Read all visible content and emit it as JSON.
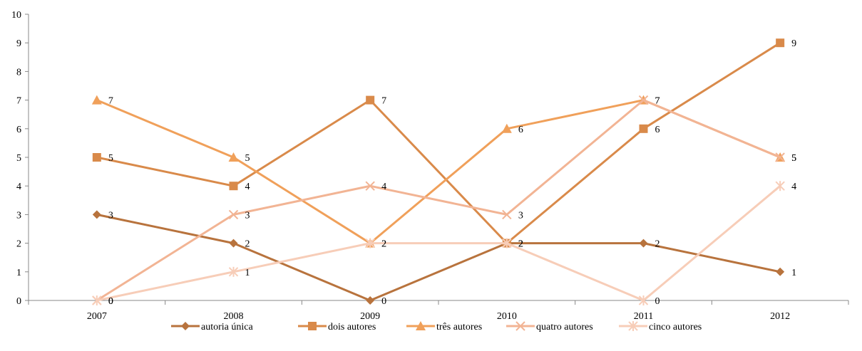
{
  "chart_data": {
    "type": "line",
    "categories": [
      "2007",
      "2008",
      "2009",
      "2010",
      "2011",
      "2012"
    ],
    "ylim": [
      0,
      10
    ],
    "yticks": [
      0,
      1,
      2,
      3,
      4,
      5,
      6,
      7,
      8,
      9,
      10
    ],
    "grid": false,
    "legend_position": "bottom",
    "series": [
      {
        "name": "autoria única",
        "values": [
          3,
          2,
          0,
          2,
          2,
          1
        ],
        "color": "#b8733d",
        "marker": "diamond"
      },
      {
        "name": "dois autores",
        "values": [
          5,
          4,
          7,
          2,
          6,
          9
        ],
        "color": "#d98a4a",
        "marker": "square"
      },
      {
        "name": "três autores",
        "values": [
          7,
          5,
          2,
          6,
          7,
          5
        ],
        "color": "#f0a05a",
        "marker": "triangle"
      },
      {
        "name": "quatro autores",
        "values": [
          0,
          3,
          4,
          3,
          7,
          5
        ],
        "color": "#f2b494",
        "marker": "x"
      },
      {
        "name": "cinco autores",
        "values": [
          0,
          1,
          2,
          2,
          0,
          4
        ],
        "color": "#f7cdb8",
        "marker": "star"
      }
    ]
  }
}
